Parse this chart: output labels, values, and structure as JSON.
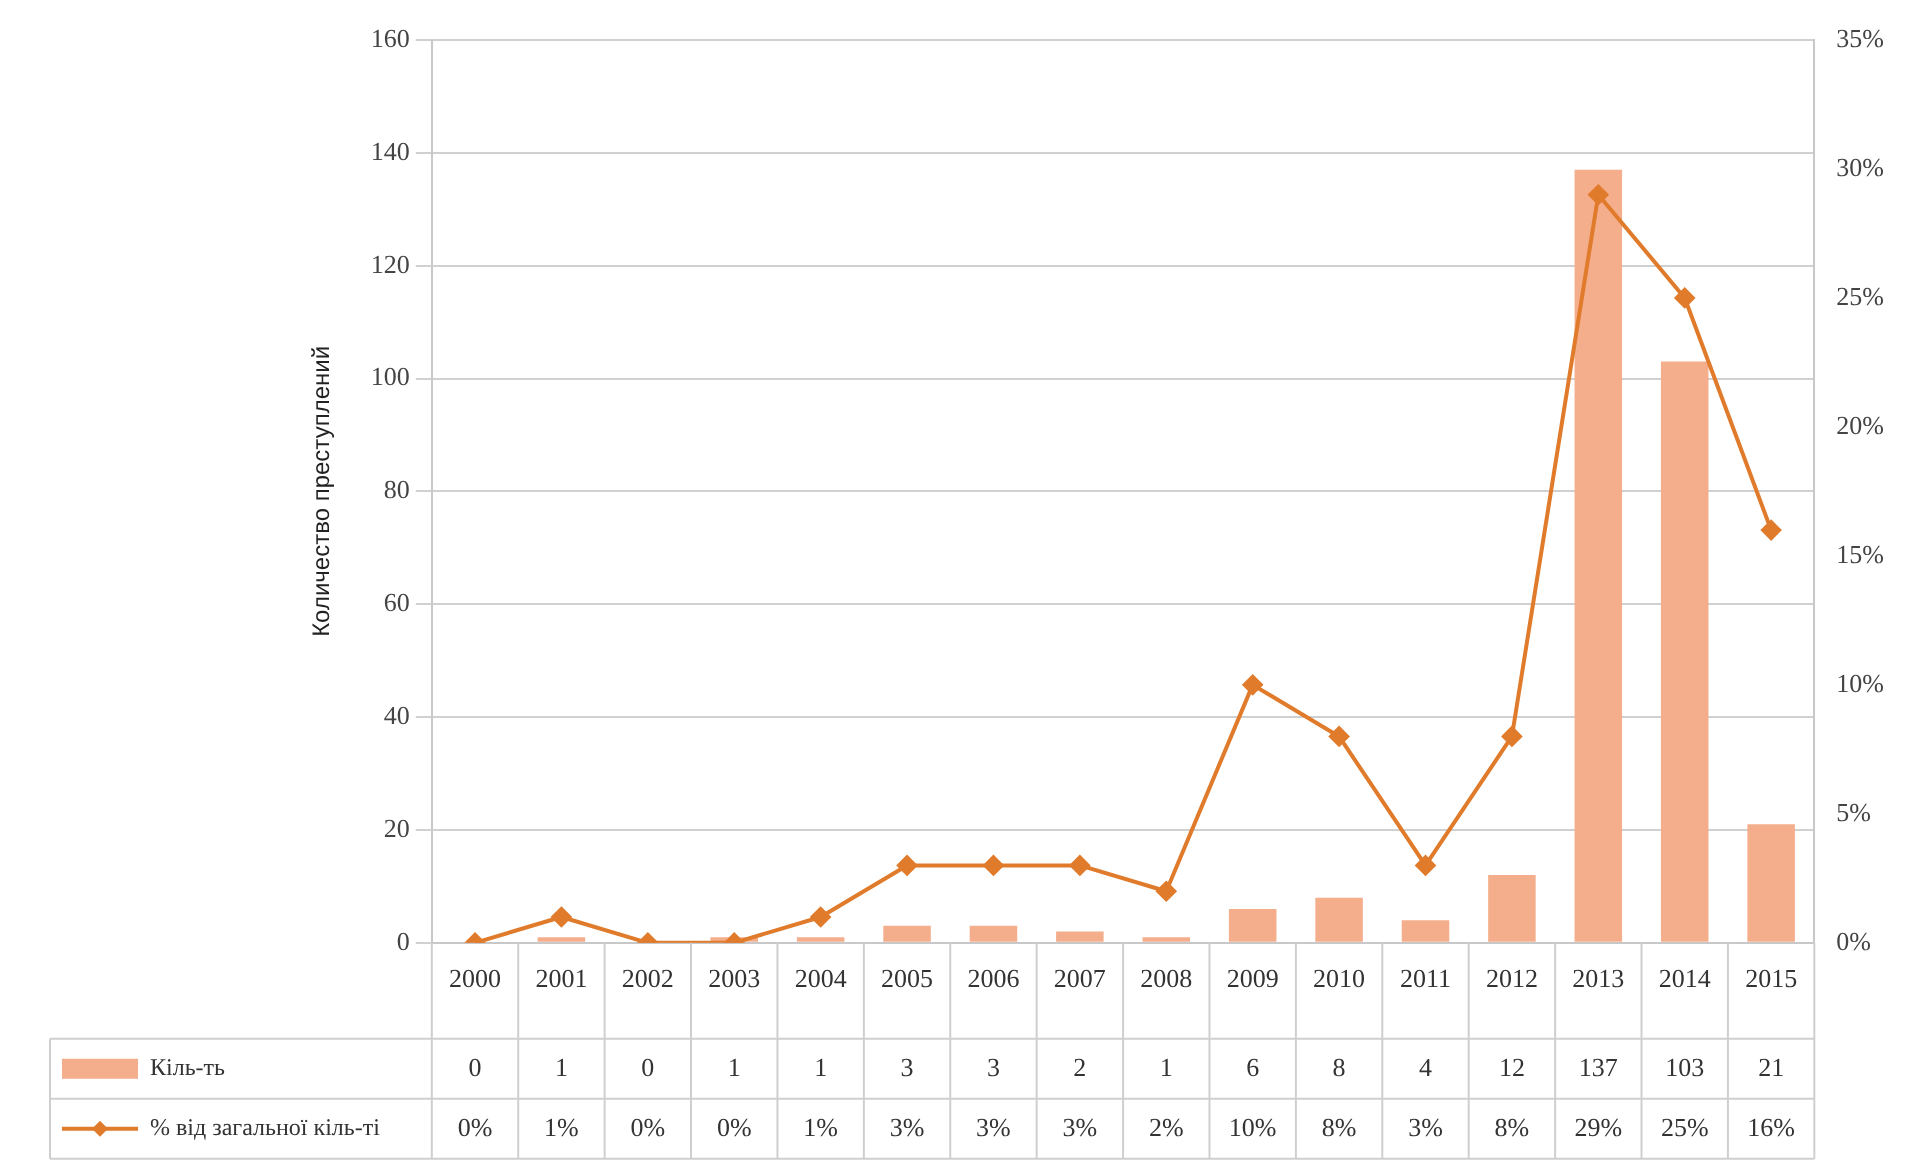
{
  "chart_data": {
    "type": "bar",
    "ylabel": "Количество преступлений",
    "categories": [
      "2000",
      "2001",
      "2002",
      "2003",
      "2004",
      "2005",
      "2006",
      "2007",
      "2008",
      "2009",
      "2010",
      "2011",
      "2012",
      "2013",
      "2014",
      "2015"
    ],
    "series": [
      {
        "name": "Кіль-ть",
        "color": "#f4ae8c",
        "values": [
          0,
          1,
          0,
          1,
          1,
          3,
          3,
          2,
          1,
          6,
          8,
          4,
          12,
          137,
          103,
          21
        ],
        "value_labels": [
          "0",
          "1",
          "0",
          "1",
          "1",
          "3",
          "3",
          "2",
          "1",
          "6",
          "8",
          "4",
          "12",
          "137",
          "103",
          "21"
        ]
      },
      {
        "name": "% від загальної кіль-ті",
        "type": "line",
        "axis": "y2",
        "color": "#e07b2c",
        "marker": "diamond",
        "values": [
          0,
          1,
          0,
          0,
          1,
          3,
          3,
          3,
          2,
          10,
          8,
          3,
          8,
          29,
          25,
          16
        ],
        "value_labels": [
          "0%",
          "1%",
          "0%",
          "0%",
          "1%",
          "3%",
          "3%",
          "3%",
          "2%",
          "10%",
          "8%",
          "3%",
          "8%",
          "29%",
          "25%",
          "16%"
        ]
      }
    ],
    "ylim": [
      0,
      160
    ],
    "yticks": [
      0,
      20,
      40,
      60,
      80,
      100,
      120,
      140,
      160
    ],
    "y2lim": [
      0,
      35
    ],
    "y2ticks": [
      {
        "value": 0,
        "label": "0%"
      },
      {
        "value": 5,
        "label": "5%"
      },
      {
        "value": 10,
        "label": "10%"
      },
      {
        "value": 15,
        "label": "15%"
      },
      {
        "value": 20,
        "label": "20%"
      },
      {
        "value": 25,
        "label": "25%"
      },
      {
        "value": 30,
        "label": "30%"
      },
      {
        "value": 35,
        "label": "35%"
      }
    ],
    "grid": "y",
    "legend": "bottom"
  }
}
